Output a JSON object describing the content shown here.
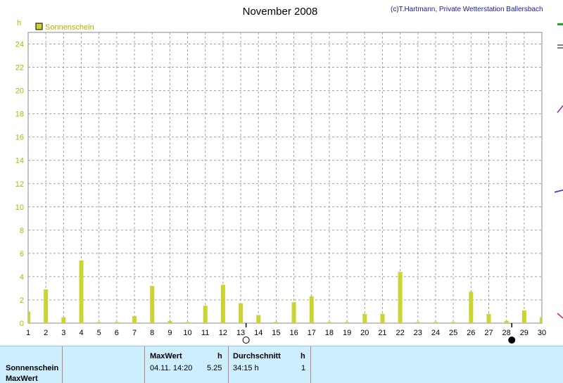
{
  "header": {
    "title": "November 2008",
    "credit": "(c)T.Hartmann, Private Wetterstation Ballersbach"
  },
  "colors": {
    "bar": "#ccd433",
    "axis_text": "#b3b300",
    "grid": "#a0a0a0",
    "footer_bg": "#cceeff",
    "credit": "#1a1aa0"
  },
  "chart_data": {
    "type": "bar",
    "ylabel": "h",
    "ylim": [
      0,
      25
    ],
    "yticks": [
      0,
      2,
      4,
      6,
      8,
      10,
      12,
      14,
      16,
      18,
      20,
      22,
      24
    ],
    "grid": true,
    "legend_position": "top-left",
    "categories": [
      "1",
      "2",
      "3",
      "4",
      "5",
      "6",
      "7",
      "8",
      "9",
      "10",
      "11",
      "12",
      "13",
      "14",
      "15",
      "16",
      "17",
      "18",
      "19",
      "20",
      "21",
      "22",
      "23",
      "24",
      "25",
      "26",
      "27",
      "28",
      "29",
      "30"
    ],
    "series": [
      {
        "name": "Sonnenschein",
        "values": [
          1.0,
          2.9,
          0.5,
          5.4,
          0.1,
          0.1,
          0.6,
          3.2,
          0.2,
          0.1,
          1.5,
          3.3,
          1.7,
          0.7,
          0.1,
          1.8,
          2.3,
          0.1,
          0.1,
          0.8,
          0.8,
          4.4,
          0.1,
          0.1,
          0.1,
          2.7,
          0.8,
          0.2,
          1.1,
          0.5
        ]
      }
    ],
    "moon_markers": [
      {
        "day": "13",
        "phase": "full-moon"
      },
      {
        "day": "28",
        "phase": "new-moon"
      }
    ]
  },
  "footer": {
    "row_labels": [
      "Sonnenschein",
      "MaxWert"
    ],
    "max_header": "MaxWert",
    "max_unit": "h",
    "max_date": "04.11.  14:20",
    "max_value": "5.25",
    "avg_header": "Durchschnitt",
    "avg_unit": "h",
    "avg_value": "34:15 h",
    "avg_extra": "1"
  }
}
